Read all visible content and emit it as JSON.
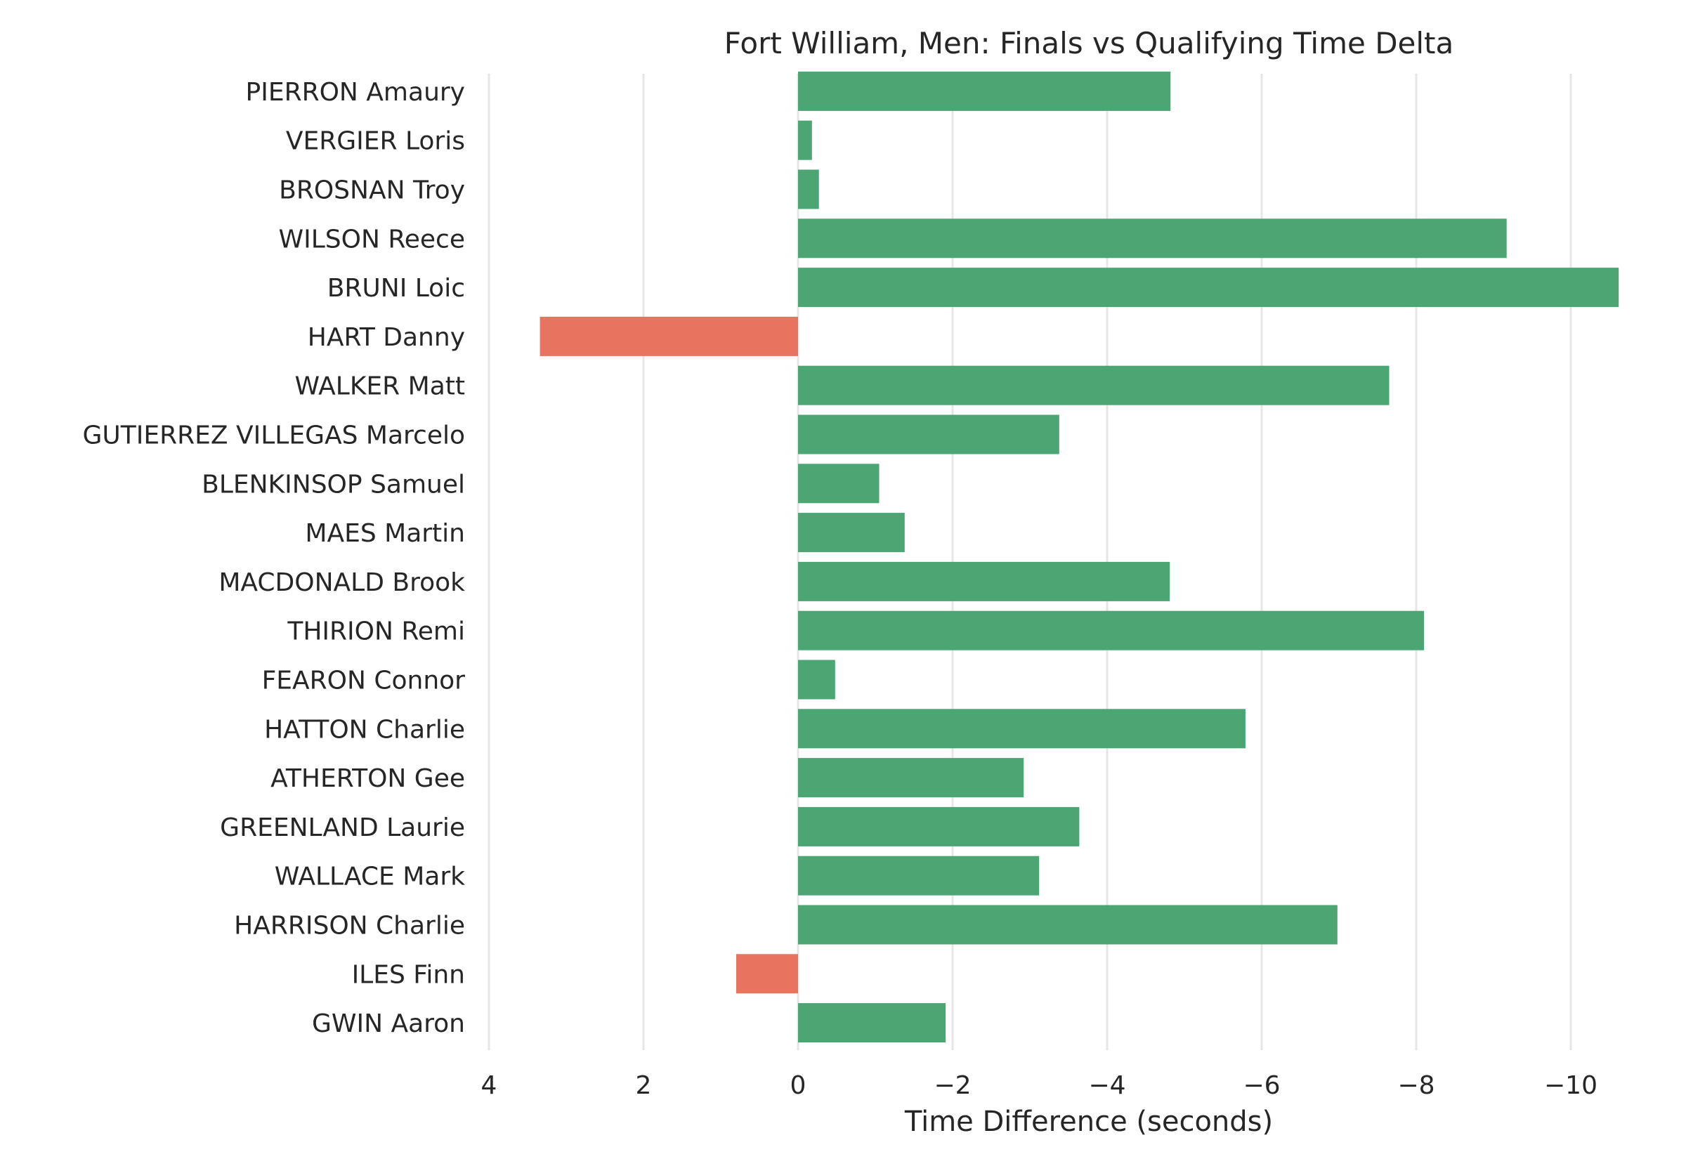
{
  "chart_data": {
    "type": "bar",
    "orientation": "horizontal",
    "title": "Fort William, Men: Finals vs Qualifying Time Delta",
    "xlabel": "Time Difference (seconds)",
    "ylabel": "",
    "x_axis_inverted": true,
    "xlim": [
      4,
      -11
    ],
    "xticks": [
      4,
      2,
      0,
      -2,
      -4,
      -6,
      -8,
      -10
    ],
    "xtick_labels": [
      "4",
      "2",
      "0",
      "−2",
      "−4",
      "−6",
      "−8",
      "−10"
    ],
    "grid": "vertical",
    "colors": {
      "faster": "#4ba674",
      "slower": "#e8735f"
    },
    "categories": [
      "PIERRON Amaury",
      "VERGIER Loris",
      "BROSNAN Troy",
      "WILSON Reece",
      "BRUNI Loic",
      "HART Danny",
      "WALKER Matt",
      "GUTIERREZ VILLEGAS Marcelo",
      "BLENKINSOP Samuel",
      "MAES Martin",
      "MACDONALD Brook",
      "THIRION Remi",
      "FEARON Connor",
      "HATTON Charlie",
      "ATHERTON Gee",
      "GREENLAND Laurie",
      "WALLACE Mark",
      "HARRISON Charlie",
      "ILES Finn",
      "GWIN Aaron"
    ],
    "values": [
      -4.82,
      -0.18,
      -0.27,
      -9.17,
      -10.62,
      3.34,
      -7.65,
      -3.38,
      -1.05,
      -1.38,
      -4.81,
      -8.1,
      -0.48,
      -5.79,
      -2.92,
      -3.64,
      -3.12,
      -6.98,
      0.8,
      -1.91
    ]
  }
}
